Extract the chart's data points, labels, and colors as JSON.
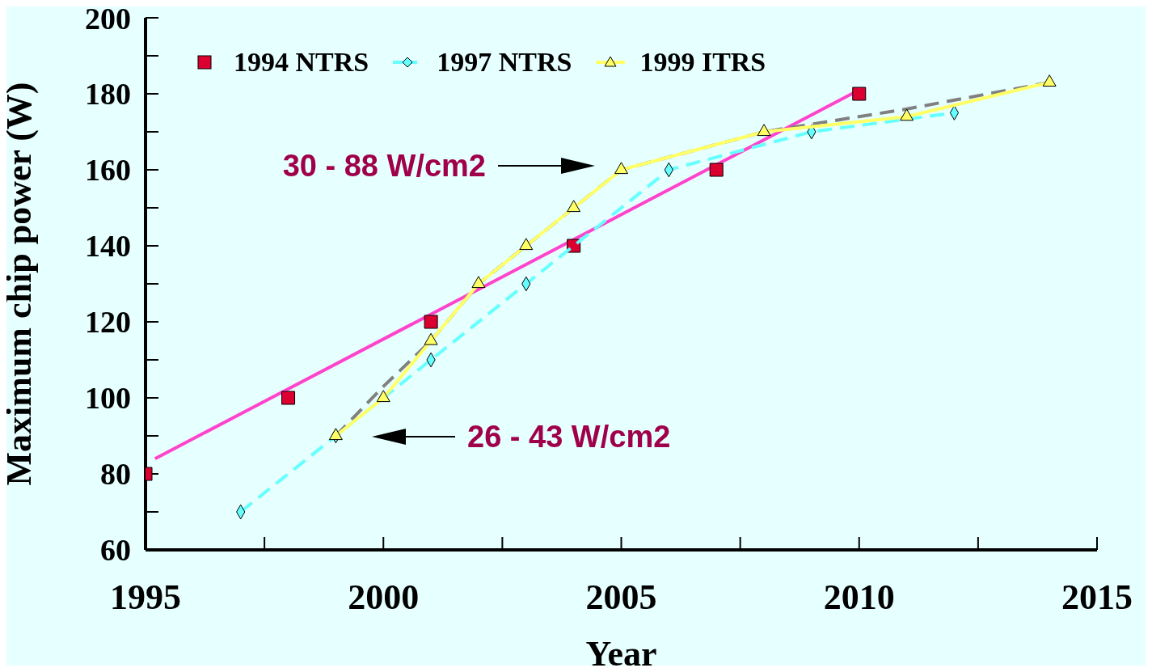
{
  "chart_data": {
    "type": "line",
    "xlabel": "Year",
    "ylabel": "Maximum chip power (W)",
    "xlim": [
      1995,
      2015
    ],
    "xticks": [
      1995,
      {
        "value": 1997.5,
        "label": null
      },
      2000,
      {
        "value": 2002.5,
        "label": null
      },
      2005,
      {
        "value": 2007.5,
        "label": null
      },
      2010,
      {
        "value": 2012.5,
        "label": null
      },
      2015
    ],
    "ylim": [
      60,
      200
    ],
    "yticks": [
      60,
      {
        "value": 70,
        "label": null
      },
      80,
      {
        "value": 90,
        "label": null
      },
      100,
      {
        "value": 110,
        "label": null
      },
      120,
      {
        "value": 130,
        "label": null
      },
      140,
      {
        "value": 150,
        "label": null
      },
      160,
      {
        "value": 170,
        "label": null
      },
      180,
      {
        "value": 190,
        "label": null
      },
      200
    ],
    "legend": "top left",
    "series": [
      {
        "name": "1994 NTRS",
        "type": "scatter",
        "color": "#dc0030",
        "marker": "square",
        "x": [
          1995,
          1998,
          2001,
          2004,
          2007,
          2010
        ],
        "values": [
          80,
          100,
          120,
          140,
          160,
          180
        ]
      },
      {
        "name": "1997 NTRS",
        "color": "#66ffff",
        "marker": "diamond",
        "line_style": "dashed",
        "x": [
          1997,
          1999,
          2001,
          2003,
          2006,
          2009,
          2012
        ],
        "values": [
          70,
          90,
          110,
          130,
          160,
          170,
          175
        ]
      },
      {
        "name": "1999 ITRS",
        "color": "#ffff66",
        "marker": "triangle",
        "line_style": "solid",
        "x": [
          1999,
          2000,
          2001,
          2002,
          2003,
          2004,
          2005,
          2008,
          2011,
          2014
        ],
        "values": [
          90,
          100,
          115,
          130,
          140,
          150,
          160,
          170,
          174,
          183
        ]
      },
      {
        "color": "#ff44cc",
        "marker": "none",
        "line_style": "solid",
        "x": [
          1995.2,
          2010
        ],
        "values": [
          84,
          181
        ]
      },
      {
        "color": "#808080",
        "marker": "none",
        "line_style": "dashed",
        "x": [
          1999,
          2000,
          2001,
          2002,
          2003,
          2004,
          2005,
          2008,
          2011,
          2014
        ],
        "values": [
          90,
          103,
          115,
          130,
          140,
          150,
          160,
          170,
          176,
          183
        ]
      }
    ],
    "annotations": [
      "30 - 88 W/cm2",
      "26 - 43 W/cm2"
    ]
  }
}
